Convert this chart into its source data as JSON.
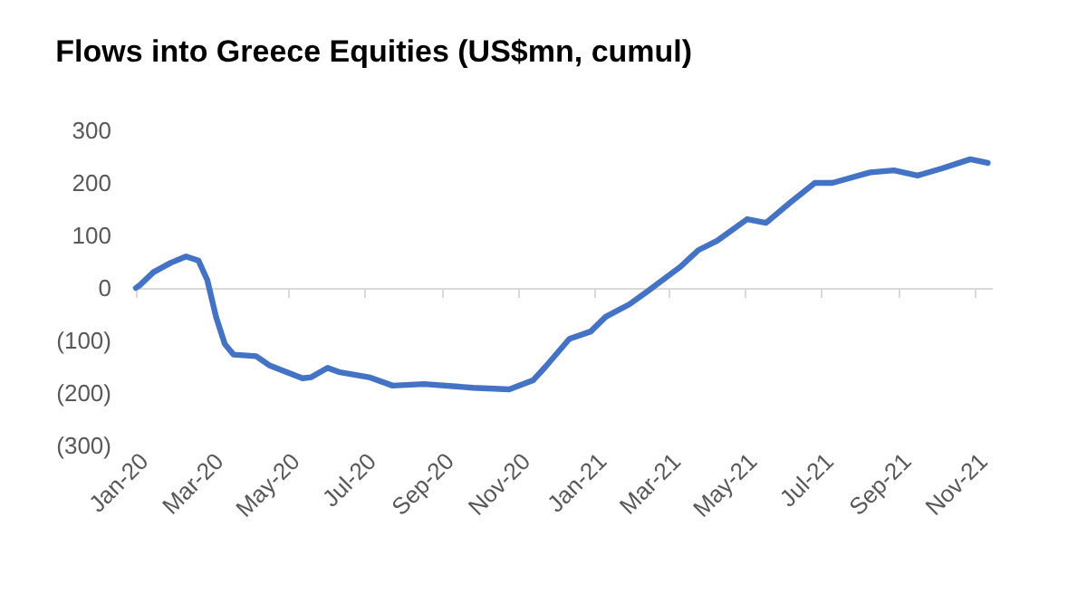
{
  "chart_data": {
    "type": "line",
    "title": "Flows into Greece Equities (US$mn, cumul)",
    "x": [
      "2020-01-01",
      "2020-01-04",
      "2020-01-15",
      "2020-01-29",
      "2020-02-10",
      "2020-02-20",
      "2020-02-27",
      "2020-03-05",
      "2020-03-12",
      "2020-03-19",
      "2020-04-06",
      "2020-04-17",
      "2020-05-13",
      "2020-05-20",
      "2020-06-02",
      "2020-06-11",
      "2020-07-05",
      "2020-07-24",
      "2020-08-18",
      "2020-09-26",
      "2020-10-25",
      "2020-11-13",
      "2020-11-23",
      "2020-12-12",
      "2020-12-29",
      "2021-01-10",
      "2021-01-29",
      "2021-02-12",
      "2021-03-11",
      "2021-03-25",
      "2021-04-09",
      "2021-05-03",
      "2021-05-18",
      "2021-06-06",
      "2021-06-26",
      "2021-07-10",
      "2021-08-09",
      "2021-08-28",
      "2021-09-16",
      "2021-10-06",
      "2021-10-28",
      "2021-11-11"
    ],
    "series": [
      {
        "color": "#4472c4",
        "values": [
          0,
          5,
          30,
          48,
          60,
          52,
          15,
          -55,
          -107,
          -127,
          -130,
          -148,
          -172,
          -170,
          -152,
          -160,
          -170,
          -186,
          -183,
          -190,
          -193,
          -176,
          -150,
          -97,
          -83,
          -55,
          -31,
          -7,
          41,
          72,
          90,
          131,
          124,
          162,
          200,
          200,
          220,
          224,
          214,
          228,
          245,
          238
        ]
      }
    ],
    "xlim": [
      "2020-01-01",
      "2021-11-15"
    ],
    "xticks": [
      {
        "value": "2020-01-01",
        "label": "Jan-20"
      },
      {
        "value": "2020-03-01",
        "label": "Mar-20"
      },
      {
        "value": "2020-05-01",
        "label": "May-20"
      },
      {
        "value": "2020-07-01",
        "label": "Jul-20"
      },
      {
        "value": "2020-09-01",
        "label": "Sep-20"
      },
      {
        "value": "2020-11-01",
        "label": "Nov-20"
      },
      {
        "value": "2021-01-01",
        "label": "Jan-21"
      },
      {
        "value": "2021-03-01",
        "label": "Mar-21"
      },
      {
        "value": "2021-05-01",
        "label": "May-21"
      },
      {
        "value": "2021-07-01",
        "label": "Jul-21"
      },
      {
        "value": "2021-09-01",
        "label": "Sep-21"
      },
      {
        "value": "2021-11-01",
        "label": "Nov-21"
      }
    ],
    "ylim": [
      -300,
      300
    ],
    "yticks": [
      {
        "value": -300,
        "label": "(300)"
      },
      {
        "value": -200,
        "label": "(200)"
      },
      {
        "value": -100,
        "label": "(100)"
      },
      0,
      100,
      200,
      300
    ],
    "marker": "none",
    "line_style": "solid"
  }
}
